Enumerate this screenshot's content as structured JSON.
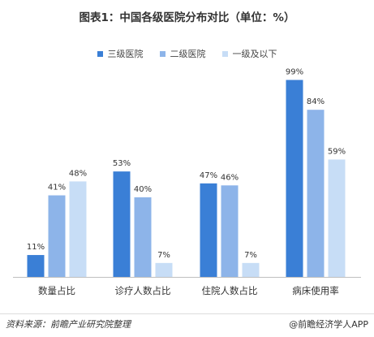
{
  "chart_data": {
    "type": "bar",
    "title": "图表1：中国各级医院分布对比（单位：%）",
    "categories": [
      "数量占比",
      "诊疗人数占比",
      "住院人数占比",
      "病床使用率"
    ],
    "series": [
      {
        "name": "三级医院",
        "color": "#3a7fd6",
        "values": [
          11,
          53,
          47,
          99
        ],
        "labels": [
          "11%",
          "53%",
          "47%",
          "99%"
        ]
      },
      {
        "name": "二级医院",
        "color": "#8db4e9",
        "values": [
          41,
          40,
          46,
          84
        ],
        "labels": [
          "41%",
          "40%",
          "46%",
          "84%"
        ]
      },
      {
        "name": "一级及以下",
        "color": "#c7ddf6",
        "values": [
          48,
          7,
          7,
          59
        ],
        "labels": [
          "48%",
          "7%",
          "7%",
          "59%"
        ]
      }
    ],
    "ylim": [
      0,
      100
    ],
    "grid": false,
    "legend": "top-center"
  },
  "footer": {
    "source": "资料来源：前瞻产业研究院整理",
    "brand": "@前瞻经济学人APP"
  }
}
